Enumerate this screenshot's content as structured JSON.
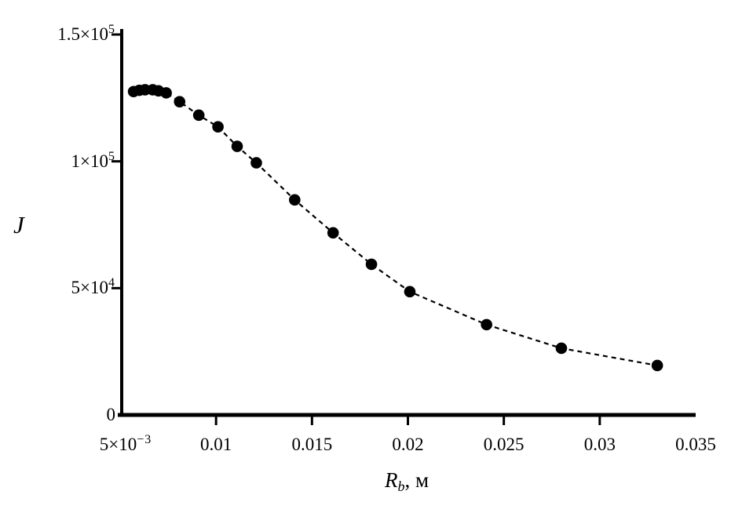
{
  "figure": {
    "background": "#ffffff",
    "ink_color": "#000000"
  },
  "chart_data": {
    "type": "scatter",
    "title": "",
    "ylabel": "J",
    "xlabel": {
      "variable": "R",
      "subscript": "b",
      "suffix": ", м"
    },
    "grid": false,
    "legend": null,
    "marker": "filled-circle",
    "line_style": "dashed",
    "xlim": [
      0.005,
      0.035
    ],
    "ylim": [
      0,
      150000
    ],
    "x": [
      0.0057,
      0.006,
      0.0063,
      0.0067,
      0.007,
      0.0074,
      0.0081,
      0.0091,
      0.0101,
      0.0111,
      0.0121,
      0.0141,
      0.0161,
      0.0181,
      0.0201,
      0.0241,
      0.028,
      0.033
    ],
    "y": [
      127500,
      128000,
      128200,
      128200,
      127800,
      127000,
      123500,
      118200,
      113600,
      105900,
      99400,
      84800,
      71800,
      59400,
      48600,
      35600,
      26300,
      19500
    ],
    "x_ticks": [
      {
        "value": 0.005,
        "label": "5×10",
        "sup": "−3",
        "tick_mark": false
      },
      {
        "value": 0.01,
        "label": "0.01",
        "tick_mark": true
      },
      {
        "value": 0.015,
        "label": "0.015",
        "tick_mark": true
      },
      {
        "value": 0.02,
        "label": "0.02",
        "tick_mark": true
      },
      {
        "value": 0.025,
        "label": "0.025",
        "tick_mark": true
      },
      {
        "value": 0.03,
        "label": "0.03",
        "tick_mark": true
      },
      {
        "value": 0.035,
        "label": "0.035",
        "tick_mark": false
      }
    ],
    "y_ticks": [
      {
        "value": 0,
        "label": "0",
        "tick_mark": false
      },
      {
        "value": 50000,
        "label": "5×10",
        "sup": "4",
        "tick_mark": true
      },
      {
        "value": 100000,
        "label": "1×10",
        "sup": "5",
        "tick_mark": true
      },
      {
        "value": 150000,
        "label": "1.5×10",
        "sup": "5",
        "tick_mark": true
      }
    ]
  }
}
